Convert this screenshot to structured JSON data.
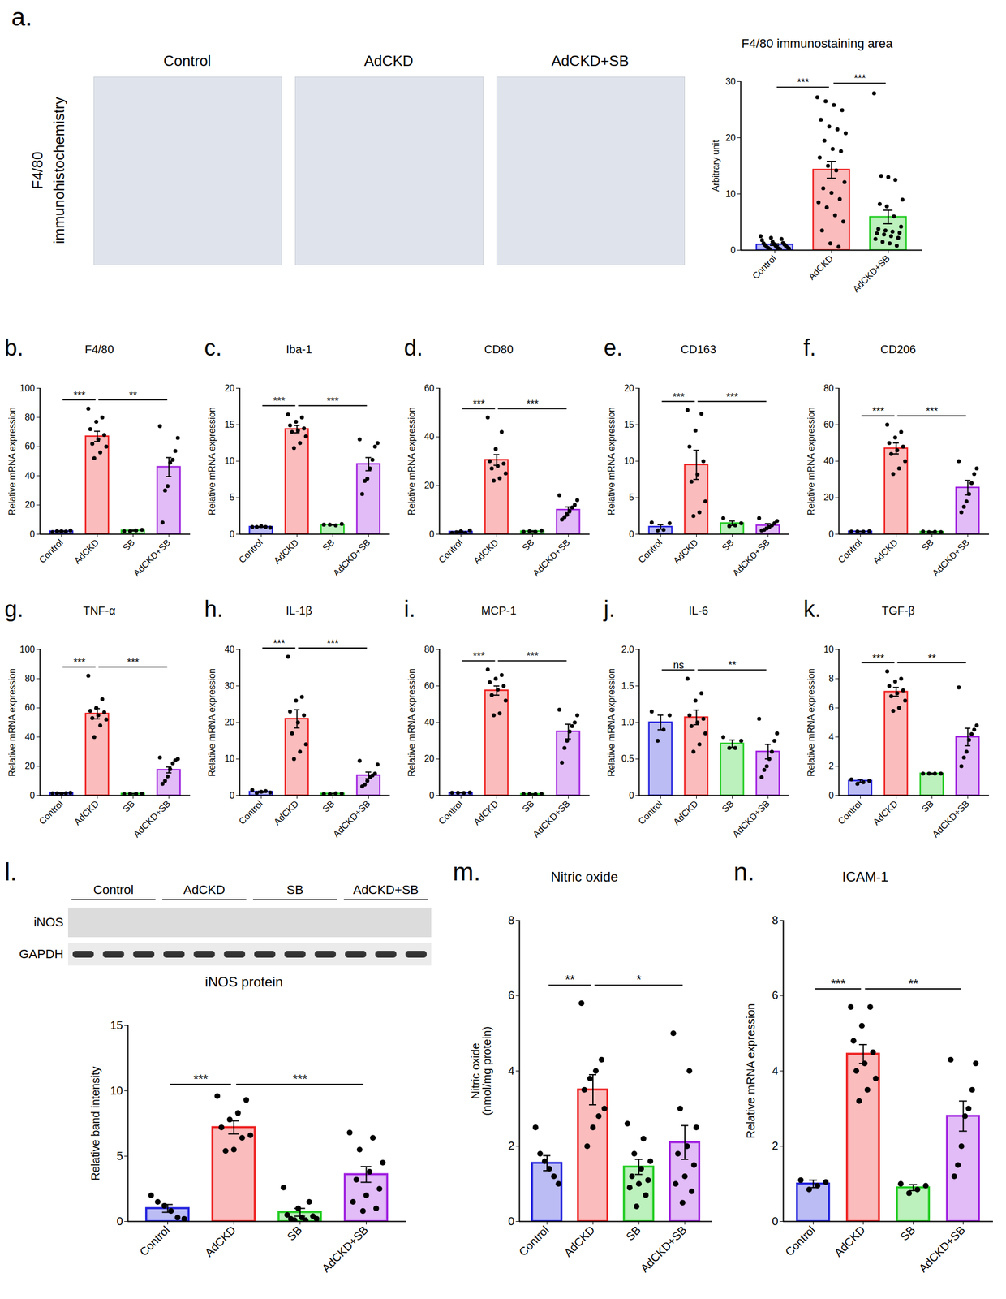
{
  "figure": {
    "panel_a_images": {
      "panel": "a.",
      "row_label": "F4/80 immunohistochemistry",
      "titles": [
        "Control",
        "AdCKD",
        "AdCKD+SB"
      ]
    },
    "blot": {
      "panel": "l.",
      "groups": [
        "Control",
        "AdCKD",
        "SB",
        "AdCKD+SB"
      ],
      "rows": [
        "iNOS",
        "GAPDH"
      ]
    }
  },
  "chart_data": [
    {
      "type": "bar",
      "title": "F4/80 immunostaining area",
      "y_label": "Arbitrary unit",
      "categories": [
        "Control",
        "AdCKD",
        "AdCKD+SB"
      ],
      "colors": [
        "#2222dd",
        "#ee2222",
        "#22cc22"
      ],
      "values": [
        1.0,
        14.3,
        5.9
      ],
      "errors": [
        0.15,
        1.5,
        1.2
      ],
      "points": [
        [
          2.5,
          2.2,
          2.0,
          1.8,
          1.5,
          1.3,
          1.2,
          1.1,
          1.0,
          0.9,
          0.8,
          0.7,
          0.6,
          0.5,
          0.5,
          0.4,
          0.3,
          0.3,
          0.2,
          0.2
        ],
        [
          27.2,
          26.5,
          25.8,
          24.9,
          23.2,
          22.0,
          21.5,
          20.8,
          19.5,
          18.0,
          17.6,
          16.5,
          15.0,
          14.2,
          12.1,
          11.0,
          10.2,
          9.1,
          8.5,
          7.6,
          6.2,
          5.1,
          3.5,
          1.2,
          0.6
        ],
        [
          27.9,
          13.2,
          13.0,
          12.5,
          9.0,
          8.2,
          7.8,
          6.0,
          4.2,
          3.8,
          3.5,
          3.3,
          3.1,
          3.0,
          2.8,
          2.5,
          2.2,
          2.0,
          1.5,
          1.2,
          0.8
        ]
      ],
      "ylim": [
        0,
        30
      ],
      "yticks": [
        0,
        10,
        20,
        30
      ],
      "significance": [
        {
          "from": 0,
          "to": 1,
          "label": "***"
        },
        {
          "from": 1,
          "to": 2,
          "label": "***"
        }
      ]
    },
    {
      "type": "bar",
      "panel": "b.",
      "title": "F4/80",
      "y_label": "Relative mRNA expression",
      "categories": [
        "Control",
        "AdCKD",
        "SB",
        "AdCKD+SB"
      ],
      "colors": [
        "#2222dd",
        "#ee2222",
        "#22cc22",
        "#a020e0"
      ],
      "values": [
        2.0,
        67,
        2.5,
        46
      ],
      "errors": [
        0.3,
        3.5,
        0.3,
        6.5
      ],
      "points": [
        [
          1.5,
          2,
          2.5,
          2,
          1.8
        ],
        [
          86,
          80,
          77,
          72,
          68,
          65,
          62,
          60,
          56,
          52
        ],
        [
          2,
          3,
          2.5,
          2
        ],
        [
          74,
          66,
          57,
          51,
          49,
          33,
          30,
          8
        ]
      ],
      "ylim": [
        0,
        100
      ],
      "yticks": [
        0,
        20,
        40,
        60,
        80,
        100
      ],
      "significance": [
        {
          "from": 0,
          "to": 1,
          "label": "***"
        },
        {
          "from": 1,
          "to": 3,
          "label": "**"
        }
      ]
    },
    {
      "type": "bar",
      "panel": "c.",
      "title": "Iba-1",
      "y_label": "Relative mRNA expression",
      "categories": [
        "Control",
        "AdCKD",
        "SB",
        "AdCKD+SB"
      ],
      "colors": [
        "#2222dd",
        "#ee2222",
        "#22cc22",
        "#a020e0"
      ],
      "values": [
        1.0,
        14.4,
        1.3,
        9.6
      ],
      "errors": [
        0.05,
        0.5,
        0.05,
        0.9
      ],
      "points": [
        [
          1,
          1.1,
          0.9,
          1,
          1
        ],
        [
          16.4,
          16,
          15.4,
          14.9,
          14.5,
          14.2,
          14,
          13.4,
          12.5,
          11.8
        ],
        [
          1.3,
          1.4,
          1.2,
          1.3
        ],
        [
          13,
          12.5,
          12,
          10.2,
          9,
          7.6,
          7.3,
          5.5
        ]
      ],
      "ylim": [
        0,
        20
      ],
      "yticks": [
        0,
        5,
        10,
        15,
        20
      ],
      "significance": [
        {
          "from": 0,
          "to": 1,
          "label": "***"
        },
        {
          "from": 1,
          "to": 3,
          "label": "***"
        }
      ]
    },
    {
      "type": "bar",
      "panel": "d.",
      "title": "CD80",
      "y_label": "Relative mRNA expression",
      "categories": [
        "Control",
        "AdCKD",
        "SB",
        "AdCKD+SB"
      ],
      "colors": [
        "#2222dd",
        "#ee2222",
        "#22cc22",
        "#a020e0"
      ],
      "values": [
        1.0,
        30.5,
        1.2,
        10
      ],
      "errors": [
        0.2,
        2.2,
        0.2,
        1.2
      ],
      "points": [
        [
          0.5,
          1.2,
          1.5,
          0.8,
          0.5
        ],
        [
          48,
          42,
          35,
          30,
          29,
          28,
          27,
          25,
          23,
          22
        ],
        [
          1,
          1.5,
          1,
          1.2
        ],
        [
          16,
          14,
          12,
          11,
          9.5,
          8,
          7,
          6
        ]
      ],
      "ylim": [
        0,
        60
      ],
      "yticks": [
        0,
        20,
        40,
        60
      ],
      "significance": [
        {
          "from": 0,
          "to": 1,
          "label": "***"
        },
        {
          "from": 1,
          "to": 3,
          "label": "***"
        }
      ]
    },
    {
      "type": "bar",
      "panel": "e.",
      "title": "CD163",
      "y_label": "Relative mRNA expression",
      "categories": [
        "Control",
        "AdCKD",
        "SB",
        "AdCKD+SB"
      ],
      "colors": [
        "#2222dd",
        "#ee2222",
        "#22cc22",
        "#a020e0"
      ],
      "values": [
        1.0,
        9.5,
        1.5,
        1.2
      ],
      "errors": [
        0.3,
        2.0,
        0.3,
        0.25
      ],
      "points": [
        [
          1.6,
          1.5,
          0.6,
          0.5
        ],
        [
          17,
          16.5,
          14.2,
          12,
          10,
          8.2,
          7.2,
          4.5,
          3,
          2.5
        ],
        [
          2.2,
          1.5,
          1.2,
          1.1
        ],
        [
          2.2,
          1.8,
          1.5,
          1.2,
          1.0,
          0.8,
          0.6,
          0.5
        ]
      ],
      "ylim": [
        0,
        20
      ],
      "yticks": [
        0,
        5,
        10,
        15,
        20
      ],
      "significance": [
        {
          "from": 0,
          "to": 1,
          "label": "***"
        },
        {
          "from": 1,
          "to": 3,
          "label": "***"
        }
      ]
    },
    {
      "type": "bar",
      "panel": "f.",
      "title": "CD206",
      "y_label": "Relative mRNA expression",
      "categories": [
        "Control",
        "AdCKD",
        "SB",
        "AdCKD+SB"
      ],
      "colors": [
        "#2222dd",
        "#ee2222",
        "#22cc22",
        "#a020e0"
      ],
      "values": [
        1.5,
        47,
        1.3,
        25.5
      ],
      "errors": [
        0.1,
        3.0,
        0.1,
        4.0
      ],
      "points": [
        [
          1.5,
          1.6,
          1.4,
          1.5
        ],
        [
          60,
          56,
          53,
          50,
          48,
          46,
          44,
          40,
          36,
          33
        ],
        [
          1.5,
          1.2,
          1.3,
          1.2
        ],
        [
          40,
          36,
          33,
          28,
          22,
          18,
          15,
          12
        ]
      ],
      "ylim": [
        0,
        80
      ],
      "yticks": [
        0,
        20,
        40,
        60,
        80
      ],
      "significance": [
        {
          "from": 0,
          "to": 1,
          "label": "***"
        },
        {
          "from": 1,
          "to": 3,
          "label": "***"
        }
      ]
    },
    {
      "type": "bar",
      "panel": "g.",
      "title": "TNF-α",
      "y_label": "Relative mRNA expression",
      "categories": [
        "Control",
        "AdCKD",
        "SB",
        "AdCKD+SB"
      ],
      "colors": [
        "#2222dd",
        "#ee2222",
        "#22cc22",
        "#a020e0"
      ],
      "values": [
        1.5,
        56,
        1.2,
        17.5
      ],
      "errors": [
        0.1,
        3.5,
        0.1,
        2.0
      ],
      "points": [
        [
          1.5,
          1.2,
          1.8,
          1.5,
          1.6
        ],
        [
          82,
          66,
          60,
          58,
          57,
          55,
          53,
          52,
          48,
          40
        ],
        [
          1,
          1.3,
          1.2,
          1.2
        ],
        [
          26,
          25,
          24,
          22,
          18,
          13,
          10,
          8
        ]
      ],
      "ylim": [
        0,
        100
      ],
      "yticks": [
        0,
        20,
        40,
        60,
        80,
        100
      ],
      "significance": [
        {
          "from": 0,
          "to": 1,
          "label": "***"
        },
        {
          "from": 1,
          "to": 3,
          "label": "***"
        }
      ]
    },
    {
      "type": "bar",
      "panel": "h.",
      "title": "IL-1β",
      "y_label": "Relative mRNA expression",
      "categories": [
        "Control",
        "AdCKD",
        "SB",
        "AdCKD+SB"
      ],
      "colors": [
        "#2222dd",
        "#ee2222",
        "#22cc22",
        "#a020e0"
      ],
      "values": [
        1.0,
        21,
        0.5,
        5.5
      ],
      "errors": [
        0.2,
        2.5,
        0.05,
        0.9
      ],
      "points": [
        [
          1.5,
          1,
          0.8,
          0.7,
          1.2
        ],
        [
          38,
          27,
          26,
          23,
          22,
          20,
          17,
          14,
          12,
          10
        ],
        [
          0.4,
          0.5,
          0.6,
          0.4
        ],
        [
          9.5,
          8.5,
          6,
          5.5,
          5,
          4,
          3,
          2.5
        ]
      ],
      "ylim": [
        0,
        40
      ],
      "yticks": [
        0,
        10,
        20,
        30,
        40
      ],
      "significance": [
        {
          "from": 0,
          "to": 1,
          "label": "***"
        },
        {
          "from": 1,
          "to": 3,
          "label": "***"
        }
      ]
    },
    {
      "type": "bar",
      "panel": "i.",
      "title": "MCP-1",
      "y_label": "Relative mRNA expression",
      "categories": [
        "Control",
        "AdCKD",
        "SB",
        "AdCKD+SB"
      ],
      "colors": [
        "#2222dd",
        "#ee2222",
        "#22cc22",
        "#a020e0"
      ],
      "values": [
        1.5,
        57.5,
        0.8,
        35
      ],
      "errors": [
        0.1,
        2.5,
        0.05,
        4.0
      ],
      "points": [
        [
          1.5,
          1.6,
          1.4,
          1.5
        ],
        [
          69,
          66,
          64,
          62,
          60,
          58,
          55,
          52,
          45,
          44
        ],
        [
          0.8,
          0.9,
          0.7,
          0.8
        ],
        [
          47,
          44,
          40,
          38,
          35,
          30,
          26,
          18
        ]
      ],
      "ylim": [
        0,
        80
      ],
      "yticks": [
        0,
        20,
        40,
        60,
        80
      ],
      "significance": [
        {
          "from": 0,
          "to": 1,
          "label": "***"
        },
        {
          "from": 1,
          "to": 3,
          "label": "***"
        }
      ]
    },
    {
      "type": "bar",
      "panel": "j.",
      "title": "IL-6",
      "y_label": "Relative mRNA expression",
      "categories": [
        "Control",
        "AdCKD",
        "SB",
        "AdCKD+SB"
      ],
      "colors": [
        "#2222dd",
        "#ee2222",
        "#22cc22",
        "#a020e0"
      ],
      "values": [
        1.0,
        1.07,
        0.71,
        0.6
      ],
      "errors": [
        0.1,
        0.1,
        0.05,
        0.1
      ],
      "points": [
        [
          1.15,
          1.1,
          0.9,
          0.75
        ],
        [
          1.6,
          1.4,
          1.3,
          1.1,
          1.05,
          1.0,
          0.95,
          0.85,
          0.7,
          0.6
        ],
        [
          0.8,
          0.75,
          0.65,
          0.65
        ],
        [
          1.05,
          0.85,
          0.75,
          0.6,
          0.5,
          0.4,
          0.35,
          0.25
        ]
      ],
      "ylim": [
        0,
        2
      ],
      "yticks": [
        0,
        0.5,
        {
          "value": 1,
          "label": "1.0"
        },
        1.5,
        {
          "value": 2,
          "label": "2.0"
        }
      ],
      "significance": [
        {
          "from": 0,
          "to": 1,
          "label": "ns"
        },
        {
          "from": 1,
          "to": 3,
          "label": "**"
        }
      ]
    },
    {
      "type": "bar",
      "panel": "k.",
      "title": "TGF-β",
      "y_label": "Relative mRNA expression",
      "categories": [
        "Control",
        "AdCKD",
        "SB",
        "AdCKD+SB"
      ],
      "colors": [
        "#2222dd",
        "#ee2222",
        "#22cc22",
        "#a020e0"
      ],
      "values": [
        1.0,
        7.1,
        1.5,
        4.0
      ],
      "errors": [
        0.1,
        0.3,
        0.02,
        0.6
      ],
      "points": [
        [
          1.1,
          1.0,
          0.9,
          0.8
        ],
        [
          8.5,
          8,
          7.8,
          7.5,
          7.2,
          7,
          6.8,
          6.5,
          6,
          5.8
        ],
        [
          1.5,
          1.5,
          1.5,
          1.5
        ],
        [
          7.4,
          4.8,
          4.5,
          4.2,
          3.8,
          3.0,
          2.6,
          2.0
        ]
      ],
      "ylim": [
        0,
        10
      ],
      "yticks": [
        0,
        2,
        4,
        6,
        8,
        10
      ],
      "significance": [
        {
          "from": 0,
          "to": 1,
          "label": "***"
        },
        {
          "from": 1,
          "to": 3,
          "label": "**"
        }
      ]
    },
    {
      "type": "bar",
      "title": "iNOS protein",
      "y_label": "Relative band intensity",
      "categories": [
        "Control",
        "AdCKD",
        "SB",
        "AdCKD+SB"
      ],
      "colors": [
        "#2222dd",
        "#ee2222",
        "#22cc22",
        "#a020e0"
      ],
      "values": [
        1.0,
        7.2,
        0.7,
        3.6
      ],
      "errors": [
        0.3,
        0.5,
        0.3,
        0.6
      ],
      "points": [
        [
          2,
          1.5,
          1.2,
          0.8,
          0.3,
          0.2
        ],
        [
          9.6,
          9.3,
          8.3,
          7.8,
          7.2,
          6.6,
          6.4,
          5.5,
          5.4
        ],
        [
          2.6,
          1.5,
          1.0,
          0.5,
          0.4,
          0.3,
          0.2,
          0.2,
          0.1,
          0.1
        ],
        [
          6.8,
          6.4,
          5.5,
          4.5,
          3.8,
          3.2,
          2.5,
          2.0,
          1.5,
          1.0,
          0.8
        ]
      ],
      "ylim": [
        0,
        15
      ],
      "yticks": [
        0,
        5,
        10,
        15
      ],
      "significance": [
        {
          "from": 0,
          "to": 1,
          "label": "***"
        },
        {
          "from": 1,
          "to": 3,
          "label": "***"
        }
      ]
    },
    {
      "type": "bar",
      "panel": "m.",
      "title": "Nitric oxide",
      "y_label": "Nitric oxide (nmol/mg protein)",
      "categories": [
        "Control",
        "AdCKD",
        "SB",
        "AdCKD+SB"
      ],
      "colors": [
        "#2222dd",
        "#ee2222",
        "#22cc22",
        "#a020e0"
      ],
      "values": [
        1.55,
        3.5,
        1.45,
        2.1
      ],
      "errors": [
        0.2,
        0.4,
        0.2,
        0.45
      ],
      "points": [
        [
          2.5,
          1.8,
          1.6,
          1.4,
          1.2,
          1.0
        ],
        [
          5.8,
          4.3,
          4.0,
          3.8,
          3.5,
          3.0,
          2.8,
          2.5,
          2.0
        ],
        [
          2.6,
          2.2,
          1.8,
          1.6,
          1.4,
          1.2,
          1.1,
          1.0,
          0.9,
          0.7,
          0.4
        ],
        [
          5.0,
          4.0,
          3.0,
          2.5,
          2.0,
          1.8,
          1.5,
          1.2,
          1.0,
          0.8,
          0.5
        ]
      ],
      "ylim": [
        0,
        8
      ],
      "yticks": [
        0,
        2,
        4,
        6,
        8
      ],
      "significance": [
        {
          "from": 0,
          "to": 1,
          "label": "**"
        },
        {
          "from": 1,
          "to": 3,
          "label": "*"
        }
      ]
    },
    {
      "type": "bar",
      "panel": "n.",
      "title": "ICAM-1",
      "y_label": "Relative mRNA expression",
      "categories": [
        "Control",
        "AdCKD",
        "SB",
        "AdCKD+SB"
      ],
      "colors": [
        "#2222dd",
        "#ee2222",
        "#22cc22",
        "#a020e0"
      ],
      "values": [
        1.0,
        4.45,
        0.9,
        2.8
      ],
      "errors": [
        0.1,
        0.25,
        0.08,
        0.4
      ],
      "points": [
        [
          1.1,
          1.05,
          0.95,
          0.85
        ],
        [
          5.7,
          5.7,
          5.2,
          4.8,
          4.5,
          4.2,
          4.0,
          3.8,
          3.5,
          3.2
        ],
        [
          1.0,
          0.95,
          0.85,
          0.75
        ],
        [
          4.3,
          4.2,
          3.5,
          3.0,
          2.8,
          2.0,
          1.5,
          1.2
        ]
      ],
      "ylim": [
        0,
        8
      ],
      "yticks": [
        0,
        2,
        4,
        6,
        8
      ],
      "significance": [
        {
          "from": 0,
          "to": 1,
          "label": "***"
        },
        {
          "from": 1,
          "to": 3,
          "label": "**"
        }
      ]
    }
  ]
}
